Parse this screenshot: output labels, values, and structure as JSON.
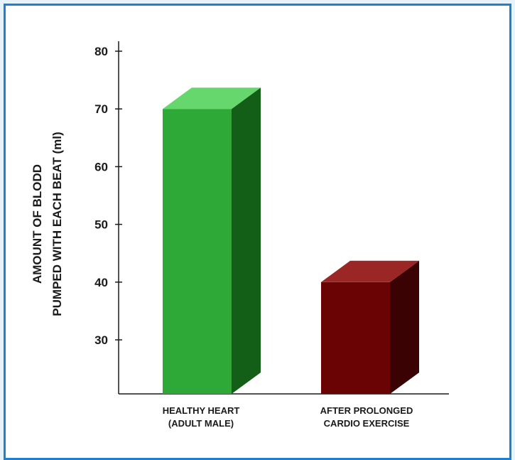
{
  "chart_data": {
    "type": "bar",
    "title": "",
    "ylabel_lines": [
      "AMOUNT OF  BLODD",
      "PUMPED WITH EACH BEAT (ml)"
    ],
    "categories": [
      [
        "HEALTHY HEART",
        "(ADULT MALE)"
      ],
      [
        "AFTER PROLONGED",
        "CARDIO EXERCISE"
      ]
    ],
    "values": [
      70,
      40
    ],
    "ylim": [
      20,
      80
    ],
    "yticks": [
      30,
      40,
      50,
      60,
      70,
      80
    ],
    "grid": false,
    "colors": [
      {
        "front": "#2ea836",
        "side": "#135f17",
        "top": "#66d76c"
      },
      {
        "front": "#6a0303",
        "side": "#3a0202",
        "top": "#9a2626"
      }
    ]
  }
}
